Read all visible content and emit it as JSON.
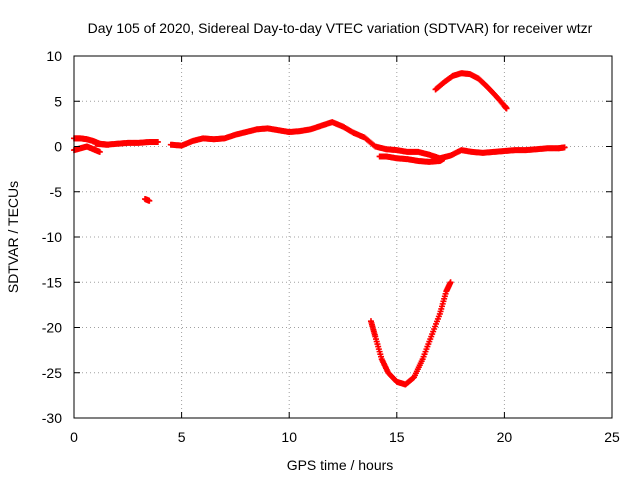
{
  "chart_data": {
    "type": "scatter",
    "title": "Day 105 of 2020, Sidereal Day-to-day VTEC variation (SDTVAR) for receiver wtzr",
    "xlabel": "GPS time / hours",
    "ylabel": "SDTVAR / TECUs",
    "xlim": [
      0,
      25
    ],
    "ylim": [
      -30,
      10
    ],
    "xticks": [
      0,
      5,
      10,
      15,
      20,
      25
    ],
    "yticks": [
      -30,
      -25,
      -20,
      -15,
      -10,
      -5,
      0,
      5,
      10
    ],
    "grid": true,
    "marker": "plus",
    "color": "#ff0000",
    "series": [
      {
        "name": "arc-1",
        "x": [
          0.0,
          0.3,
          0.6,
          0.9,
          1.2,
          1.6
        ],
        "y": [
          0.9,
          0.9,
          0.8,
          0.6,
          0.3,
          0.2
        ]
      },
      {
        "name": "arc-2",
        "x": [
          0.0,
          0.3,
          0.6,
          0.9,
          1.2
        ],
        "y": [
          -0.4,
          -0.2,
          0.0,
          -0.3,
          -0.6
        ]
      },
      {
        "name": "arc-3",
        "x": [
          1.0,
          1.5,
          2.0,
          2.5,
          3.0,
          3.5,
          3.9
        ],
        "y": [
          0.3,
          0.2,
          0.3,
          0.4,
          0.4,
          0.5,
          0.5
        ]
      },
      {
        "name": "arc-4",
        "x": [
          3.3,
          3.5
        ],
        "y": [
          -5.8,
          -6.0
        ]
      },
      {
        "name": "arc-5",
        "x": [
          4.5,
          5.0,
          5.5,
          6.0,
          6.5,
          7.0,
          7.5,
          8.0,
          8.5,
          9.0,
          9.5,
          10.0,
          10.5,
          11.0,
          11.5,
          12.0,
          12.5,
          13.0
        ],
        "y": [
          0.2,
          0.1,
          0.6,
          0.9,
          0.8,
          0.9,
          1.3,
          1.6,
          1.9,
          2.0,
          1.8,
          1.6,
          1.7,
          1.9,
          2.3,
          2.7,
          2.2,
          1.5
        ]
      },
      {
        "name": "arc-6",
        "x": [
          13.0,
          13.5,
          14.0,
          14.5,
          15.0,
          15.5,
          16.0,
          16.5,
          17.0,
          17.5,
          18.0,
          18.5,
          19.0,
          19.5,
          20.0,
          20.5,
          21.0,
          21.5,
          22.0,
          22.5,
          22.8
        ],
        "y": [
          1.5,
          1.0,
          0.0,
          -0.3,
          -0.4,
          -0.6,
          -0.6,
          -0.9,
          -1.3,
          -1.0,
          -0.4,
          -0.6,
          -0.7,
          -0.6,
          -0.5,
          -0.4,
          -0.4,
          -0.3,
          -0.2,
          -0.2,
          -0.1
        ]
      },
      {
        "name": "arc-7",
        "x": [
          14.2,
          14.5,
          15.0,
          15.5,
          16.0,
          16.5,
          17.0,
          17.2
        ],
        "y": [
          -1.1,
          -1.1,
          -1.3,
          -1.4,
          -1.6,
          -1.7,
          -1.6,
          -1.3
        ]
      },
      {
        "name": "arc-8",
        "x": [
          13.8,
          14.0,
          14.3,
          14.6,
          15.0,
          15.4,
          15.8,
          16.2,
          16.6,
          17.0,
          17.3,
          17.5
        ],
        "y": [
          -19.3,
          -21.0,
          -23.5,
          -25.0,
          -26.0,
          -26.3,
          -25.5,
          -23.5,
          -21.0,
          -18.5,
          -16.0,
          -15.0
        ]
      },
      {
        "name": "arc-9",
        "x": [
          16.8,
          17.2,
          17.6,
          18.0,
          18.4,
          18.8,
          19.2,
          19.6,
          20.0,
          20.1
        ],
        "y": [
          6.3,
          7.1,
          7.8,
          8.1,
          8.0,
          7.5,
          6.6,
          5.6,
          4.5,
          4.2
        ]
      }
    ]
  }
}
